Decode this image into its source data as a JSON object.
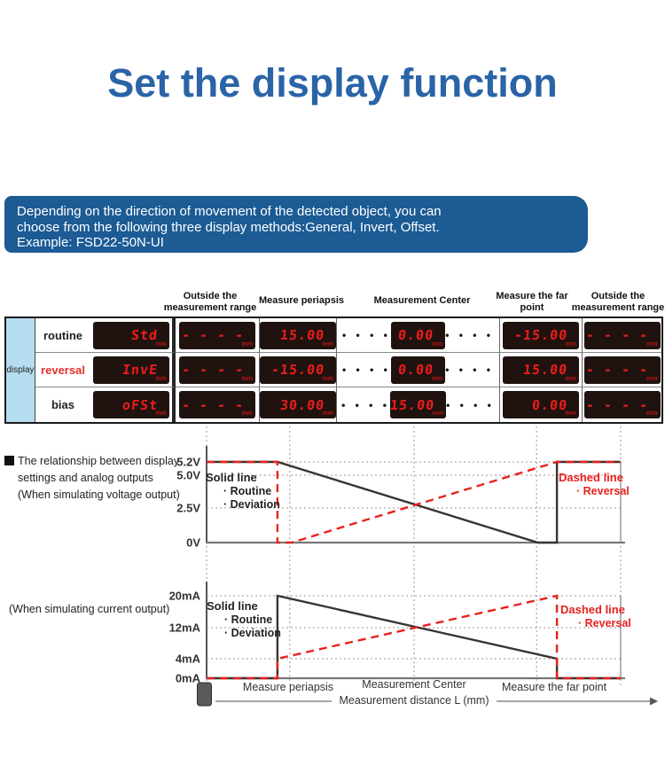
{
  "page": {
    "title": "Set the display function",
    "title_color": "#2a64a7"
  },
  "banner": {
    "bg_color": "#1c5b94",
    "lines": [
      "Depending on the direction of movement of the detected object, you can",
      "choose from the following three display methods:General, Invert, Offset.",
      "Example: FSD22-50N-UI"
    ]
  },
  "table": {
    "corner_label": "display",
    "unit": "mm",
    "dots": "• • • •",
    "reversal_color": "#e0312b",
    "headers": [
      "Outside the measurement range",
      "Measure periapsis",
      "Measurement Center",
      "Measure the far point",
      "Outside the measurement range"
    ],
    "rows": [
      {
        "label": "routine",
        "color": "#222222",
        "mode": "Std",
        "cells": [
          "- - - -",
          "15.00",
          "0.00",
          "-15.00",
          "- - - -"
        ]
      },
      {
        "label": "reversal",
        "color": "#e0312b",
        "mode": "InvE",
        "cells": [
          "- - - -",
          "-15.00",
          "0.00",
          "15.00",
          "- - - -"
        ]
      },
      {
        "label": "bias",
        "color": "#222222",
        "mode": "oFSt",
        "cells": [
          "- - - -",
          "30.00",
          "15.00",
          "0.00",
          "- - - -"
        ]
      }
    ]
  },
  "chart_section": {
    "note_voltage_line1": "The relationship between display",
    "note_voltage_line2": "settings and analog outputs",
    "note_voltage_line3": "(When simulating voltage output)",
    "note_current": "(When simulating current output)",
    "legend_solid_title": "Solid line",
    "legend_solid_item1": "· Routine",
    "legend_solid_item2": "· Deviation",
    "legend_dashed_title": "Dashed line",
    "legend_dashed_item1": "· Reversal",
    "x_label_periapsis": "Measure periapsis",
    "x_label_center": "Measurement Center",
    "x_label_far": "Measure the far point",
    "x_axis_title": "Measurement distance L (mm)"
  },
  "chart_data": [
    {
      "type": "line",
      "title": "Analog voltage output vs measurement distance",
      "x_gridlines": [
        0,
        0.201,
        0.501,
        0.797,
        1
      ],
      "x_axis_points": [
        "Measure periapsis",
        "Measurement Center",
        "Measure the far point"
      ],
      "y_ticks": [
        {
          "label": "5.2V",
          "value": 5.2
        },
        {
          "label": "5.0V",
          "value": 5.0
        },
        {
          "label": "2.5V",
          "value": 2.5
        },
        {
          "label": "0V",
          "value": 0
        }
      ],
      "series": [
        {
          "name": "Routine / Deviation",
          "style": "solid",
          "color": "#3a3332",
          "points": [
            [
              0,
              5.2
            ],
            [
              0.171,
              5.2
            ],
            [
              0.8,
              0
            ],
            [
              0.846,
              0
            ],
            [
              0.846,
              5.2
            ],
            [
              1,
              5.2
            ]
          ]
        },
        {
          "name": "Reversal",
          "style": "dashed",
          "color": "#e8211d",
          "points": [
            [
              0,
              5.2
            ],
            [
              0.171,
              5.2
            ],
            [
              0.171,
              0
            ],
            [
              0.205,
              0
            ],
            [
              0.846,
              5.2
            ],
            [
              1,
              5.2
            ]
          ]
        }
      ]
    },
    {
      "type": "line",
      "title": "Analog current output vs measurement distance",
      "x_gridlines": [
        0,
        0.201,
        0.501,
        0.797,
        1
      ],
      "x_axis_points": [
        "Measure periapsis",
        "Measurement Center",
        "Measure the far point"
      ],
      "y_ticks": [
        {
          "label": "20mA",
          "value": 20
        },
        {
          "label": "12mA",
          "value": 12
        },
        {
          "label": "4mA",
          "value": 4
        },
        {
          "label": "0mA",
          "value": 0
        }
      ],
      "series": [
        {
          "name": "Routine / Deviation",
          "style": "solid",
          "color": "#3a3332",
          "points": [
            [
              0,
              0
            ],
            [
              0.171,
              0
            ],
            [
              0.171,
              20
            ],
            [
              0.846,
              4
            ],
            [
              0.846,
              0
            ],
            [
              1,
              0
            ]
          ]
        },
        {
          "name": "Reversal",
          "style": "dashed",
          "color": "#e8211d",
          "points": [
            [
              0,
              0
            ],
            [
              0.171,
              0
            ],
            [
              0.171,
              4
            ],
            [
              0.846,
              20
            ],
            [
              0.846,
              0
            ],
            [
              1,
              0
            ]
          ]
        }
      ]
    }
  ]
}
